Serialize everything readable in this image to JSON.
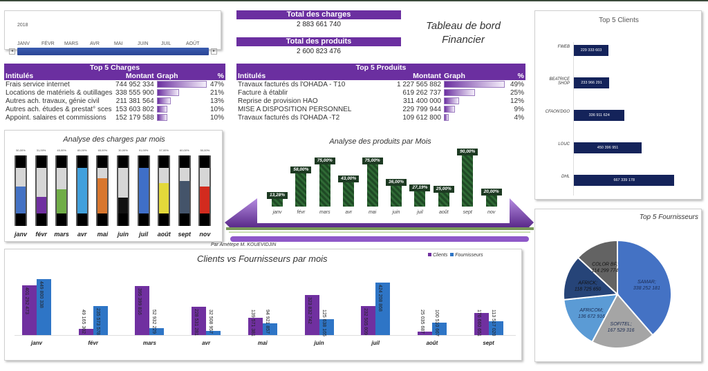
{
  "timeline": {
    "year": "2018",
    "months": [
      "JANV",
      "FÉVR",
      "MARS",
      "AVR",
      "MAI",
      "JUIN",
      "JUIL",
      "AOÛT"
    ],
    "left_arrow": "◂",
    "right_arrow": "▸"
  },
  "totals": {
    "charges_label": "Total des charges",
    "charges_value": "2 883 661 740",
    "produits_label": "Total des produits",
    "produits_value": "2 600 823 476"
  },
  "title": {
    "line1": "Tableau de bord",
    "line2": "Financier"
  },
  "top_charges": {
    "title": "Top 5 Charges",
    "headers": [
      "Intitulés",
      "Montant",
      "Graph",
      "%"
    ],
    "rows": [
      {
        "label": "Frais service internet",
        "amount": "744 952 334",
        "pct": "47%",
        "share": 0.47
      },
      {
        "label": "Locations de matériels & outillages",
        "amount": "338 555 900",
        "pct": "21%",
        "share": 0.21
      },
      {
        "label": "Autres ach. travaux, génie civil",
        "amount": "211 381 564",
        "pct": "13%",
        "share": 0.13
      },
      {
        "label": "Autres ach. études & prestat° sces",
        "amount": "153 603 802",
        "pct": "10%",
        "share": 0.1
      },
      {
        "label": "Appoint. salaires et commissions",
        "amount": "152 179 588",
        "pct": "10%",
        "share": 0.1
      }
    ]
  },
  "top_produits": {
    "title": "Top 5 Produits",
    "headers": [
      "Intitulés",
      "Montant",
      "Graph",
      "%"
    ],
    "rows": [
      {
        "label": "Travaux facturés ds l'OHADA - T10",
        "amount": "1 227 565 882",
        "pct": "49%",
        "share": 0.49
      },
      {
        "label": "Facture à établir",
        "amount": "619 262 737",
        "pct": "25%",
        "share": 0.25
      },
      {
        "label": "Reprise de provision HAO",
        "amount": "311 400 000",
        "pct": "12%",
        "share": 0.12
      },
      {
        "label": "MISE A DISPOSITION PERSONNEL",
        "amount": "229 799 944",
        "pct": "9%",
        "share": 0.09
      },
      {
        "label": "Travaux facturés ds l'OHADA -T2",
        "amount": "109 612 800",
        "pct": "4%",
        "share": 0.04
      }
    ]
  },
  "credit": "Par Amétepe M. KOUEVIDJIN",
  "chart_data": [
    {
      "type": "bar",
      "title": "Analyse des charges par mois",
      "categories": [
        "janv",
        "févr",
        "mars",
        "avr",
        "mai",
        "juin",
        "juil",
        "août",
        "sept",
        "nov"
      ],
      "values": [
        50,
        31,
        45,
        85,
        65,
        30,
        91,
        57,
        60,
        50
      ],
      "labels": [
        "50,00%",
        "31,00%",
        "45,00%",
        "85,00%",
        "65,00%",
        "30,00%",
        "91,00%",
        "57,00%",
        "60,00%",
        "50,00%"
      ],
      "colors": [
        "#4472c4",
        "#7030a0",
        "#70ad47",
        "#41a0dc",
        "#d9772e",
        "#111111",
        "#3f6fc8",
        "#e3d93a",
        "#44546a",
        "#d22b1e"
      ]
    },
    {
      "type": "bar",
      "title": "Analyse des produits par Mois",
      "categories": [
        "janv",
        "févr",
        "mars",
        "avr",
        "mai",
        "juin",
        "juil",
        "août",
        "sept",
        "nov"
      ],
      "values": [
        13.28,
        58,
        75,
        43,
        75,
        36,
        27.19,
        25,
        90,
        20
      ],
      "labels": [
        "13,28%",
        "58,00%",
        "75,00%",
        "43,00%",
        "75,00%",
        "36,00%",
        "27,19%",
        "25,00%",
        "90,00%",
        "20,00%"
      ]
    },
    {
      "type": "bar",
      "title": "Clients vs Fournisseurs par mois",
      "categories": [
        "janv",
        "févr",
        "mars",
        "avr",
        "mai",
        "juin",
        "juil",
        "août",
        "sept"
      ],
      "series": [
        {
          "name": "Clients",
          "color": "#7030a0",
          "values": [
            401292473,
            49165302,
            395399816,
            228531281,
            139571381,
            323832742,
            232505609,
            25035687,
            176660651
          ],
          "labels": [
            "401 292 473",
            "49 165 302",
            "395 399 816",
            "228 531 281",
            "139 571 381",
            "323 832 742",
            "232 505 609",
            "25 035 687",
            "176 660 651"
          ]
        },
        {
          "name": "Fournisseurs",
          "color": "#2e75c6",
          "values": [
            449800338,
            235573578,
            52932229,
            32508957,
            94921857,
            125638165,
            424208868,
            100510667,
            113517020
          ],
          "labels": [
            "449 800 338",
            "235 573 578",
            "52 932 229",
            "32 508 957",
            "94 921 857",
            "125 638 165",
            "424 208 868",
            "100 510 667",
            "113 517 020"
          ]
        }
      ]
    },
    {
      "type": "bar",
      "orientation": "horizontal",
      "title": "Top 5 Clients",
      "categories": [
        "FWEB",
        "BEATRICE SHOP",
        "CFAON'DGO",
        "LOUC",
        "DHL"
      ],
      "values": [
        229333603,
        233966291,
        336911624,
        450396951,
        667339178
      ],
      "labels": [
        "229 333 603",
        "233 966 291",
        "336 911 624",
        "450 396 951",
        "667 339 178"
      ],
      "color": "#14235a"
    },
    {
      "type": "pie",
      "title": "Top 5 Fournisseurs",
      "categories": [
        "SAMAR",
        "SOFITEL",
        "AFRICOM",
        "AFRICK",
        "COLOR BF"
      ],
      "values": [
        338252181,
        167529316,
        136672916,
        118725650,
        114299774
      ],
      "labels": [
        "338 252 181",
        "167 529 316",
        "136 672 916",
        "118 725 650",
        "114 299 774"
      ],
      "colors": [
        "#4472c4",
        "#a5a5a5",
        "#5b9bd5",
        "#264478",
        "#636363"
      ]
    }
  ]
}
